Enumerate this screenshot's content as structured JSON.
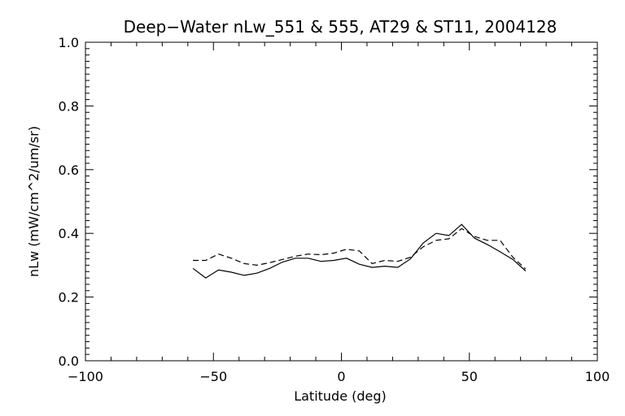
{
  "chart_data": {
    "type": "line",
    "title": "Deep−Water nLw_551 & 555, AT29 & ST11, 2004128",
    "xlabel": "Latitude (deg)",
    "ylabel": "nLw (mW/cm^2/um/sr)",
    "xlim": [
      -100,
      100
    ],
    "ylim": [
      0.0,
      1.0
    ],
    "xticks": [
      -100,
      -50,
      0,
      50,
      100
    ],
    "xtick_labels": [
      "−100",
      "−50",
      "0",
      "50",
      "100"
    ],
    "yticks": [
      0.0,
      0.2,
      0.4,
      0.6,
      0.8,
      1.0
    ],
    "ytick_labels": [
      "0.0",
      "0.2",
      "0.4",
      "0.6",
      "0.8",
      "1.0"
    ],
    "grid": false,
    "series": [
      {
        "style": "solid",
        "color": "#000000",
        "x": [
          -58,
          -53,
          -48,
          -43,
          -38,
          -33,
          -28,
          -23,
          -18,
          -13,
          -8,
          -3,
          2,
          7,
          12,
          17,
          22,
          27,
          32,
          37,
          42,
          47,
          52,
          57,
          62,
          67,
          72
        ],
        "y": [
          0.29,
          0.26,
          0.285,
          0.278,
          0.268,
          0.275,
          0.29,
          0.31,
          0.322,
          0.322,
          0.312,
          0.315,
          0.322,
          0.303,
          0.293,
          0.297,
          0.293,
          0.32,
          0.37,
          0.4,
          0.393,
          0.428,
          0.385,
          0.365,
          0.342,
          0.318,
          0.282
        ]
      },
      {
        "style": "dashed",
        "color": "#000000",
        "x": [
          -58,
          -53,
          -48,
          -43,
          -38,
          -33,
          -28,
          -23,
          -18,
          -13,
          -8,
          -3,
          2,
          7,
          12,
          17,
          22,
          27,
          32,
          37,
          42,
          47,
          52,
          57,
          62,
          67,
          72
        ],
        "y": [
          0.315,
          0.315,
          0.335,
          0.322,
          0.305,
          0.3,
          0.308,
          0.318,
          0.328,
          0.335,
          0.333,
          0.338,
          0.35,
          0.345,
          0.305,
          0.315,
          0.312,
          0.325,
          0.358,
          0.378,
          0.383,
          0.415,
          0.39,
          0.378,
          0.378,
          0.325,
          0.288
        ]
      }
    ]
  }
}
